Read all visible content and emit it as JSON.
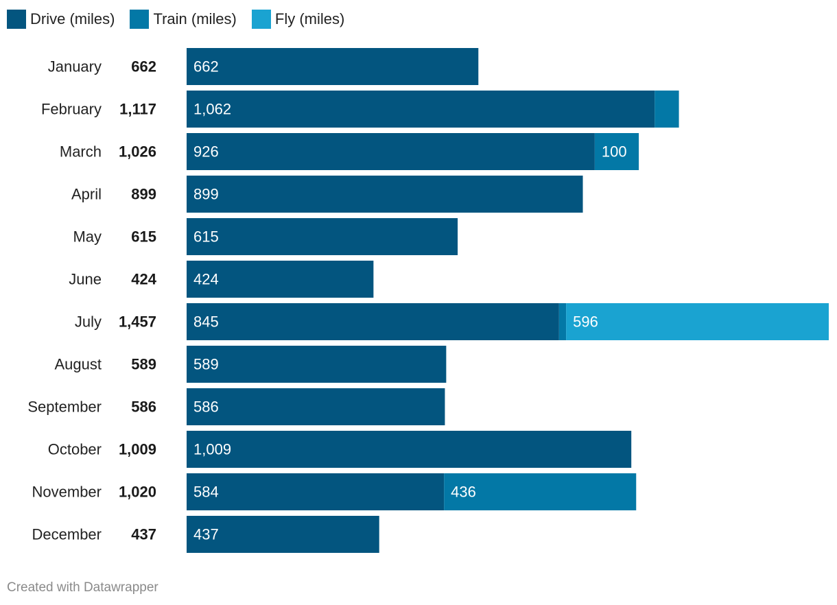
{
  "chart_data": {
    "type": "bar",
    "orientation": "horizontal",
    "stacked": true,
    "categories": [
      "January",
      "February",
      "March",
      "April",
      "May",
      "June",
      "July",
      "August",
      "September",
      "October",
      "November",
      "December"
    ],
    "totals": [
      "662",
      "1,117",
      "1,026",
      "899",
      "615",
      "424",
      "1,457",
      "589",
      "586",
      "1,009",
      "1,020",
      "437"
    ],
    "series": [
      {
        "name": "Drive (miles)",
        "color": "#03557f",
        "values": [
          662,
          1062,
          926,
          899,
          615,
          424,
          845,
          589,
          586,
          1009,
          584,
          437
        ],
        "labels": [
          "662",
          "1,062",
          "926",
          "899",
          "615",
          "424",
          "845",
          "589",
          "586",
          "1,009",
          "584",
          "437"
        ]
      },
      {
        "name": "Train (miles)",
        "color": "#0378a6",
        "values": [
          0,
          55,
          100,
          0,
          0,
          0,
          16,
          0,
          0,
          0,
          436,
          0
        ],
        "labels": [
          "",
          "",
          "100",
          "",
          "",
          "",
          "",
          "",
          "",
          "",
          "436",
          ""
        ]
      },
      {
        "name": "Fly (miles)",
        "color": "#1aa3d1",
        "values": [
          0,
          0,
          0,
          0,
          0,
          0,
          596,
          0,
          0,
          0,
          0,
          0
        ],
        "labels": [
          "",
          "",
          "",
          "",
          "",
          "",
          "596",
          "",
          "",
          "",
          "",
          ""
        ]
      }
    ],
    "xlim": [
      0,
      1457
    ]
  },
  "footer": {
    "credit": "Created with Datawrapper"
  }
}
